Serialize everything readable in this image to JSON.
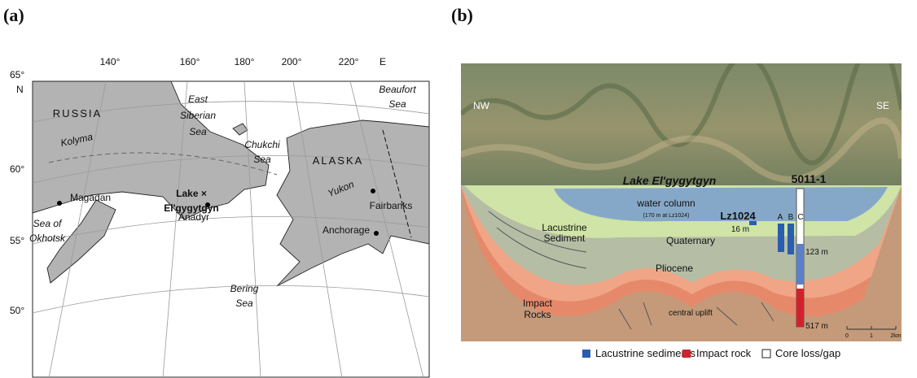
{
  "panel_a": {
    "label": "(a)",
    "lon_labels": [
      "140°",
      "160°",
      "180°",
      "200°",
      "220°",
      "E"
    ],
    "lat_labels": [
      "65°",
      "N",
      "60°",
      "55°",
      "50°"
    ],
    "places": {
      "russia": "RUSSIA",
      "kolyma": "Kolyma",
      "east_siberian_sea": [
        "East",
        "Siberian",
        "Sea"
      ],
      "chukchi_sea": [
        "Chukchi",
        "Sea"
      ],
      "alaska": "ALASKA",
      "beaufort_sea": [
        "Beaufort",
        "Sea"
      ],
      "yukon": "Yukon",
      "lake": [
        "Lake ×",
        "El'gygytgyn"
      ],
      "magadan": "Magadan",
      "sea_of_okhotsk": [
        "Sea of",
        "Okhotsk"
      ],
      "anadyr": "Anadyr",
      "fairbanks": "Fairbanks",
      "anchorage": "Anchorage",
      "bering_sea": [
        "Bering",
        "Sea"
      ]
    }
  },
  "panel_b": {
    "label": "(b)",
    "nw": "NW",
    "se": "SE",
    "lake": "Lake El'gygytgyn",
    "site": "5011-1",
    "water_column": "water column",
    "water_note": "(170 m at Lz1024)",
    "lz": "Lz1024",
    "lz_depth": "16 m",
    "holes": [
      "A",
      "B",
      "C"
    ],
    "lacustrine": [
      "Lacustrine",
      "Sediment"
    ],
    "quaternary": "Quaternary",
    "depth_1": "123 m",
    "pliocene": "Pliocene",
    "impact": [
      "Impact",
      "Rocks"
    ],
    "uplift": "central uplift",
    "depth_2": "517 m",
    "scale": [
      "0",
      "1",
      "2km"
    ],
    "legend": [
      "Lacustrine sediments",
      "Impact rock",
      "Core loss/gap"
    ]
  }
}
